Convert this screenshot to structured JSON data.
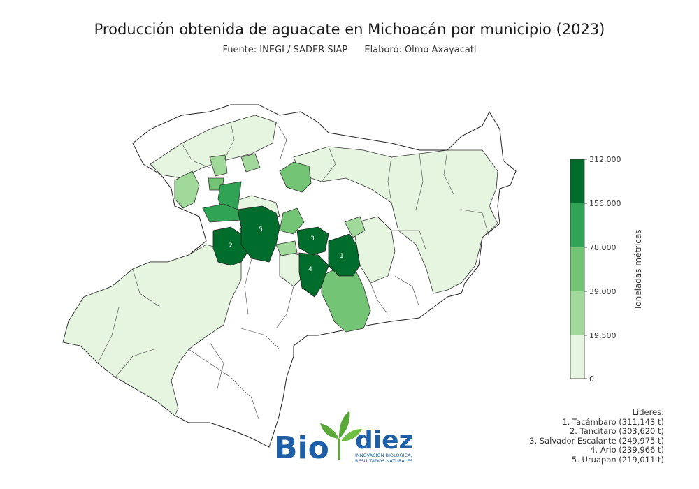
{
  "title": "Producción obtenida de aguacate en Michoacán por municipio (2023)",
  "source": "Fuente: INEGI / SADER-SIAP",
  "author": "Elaboró: Olmo Axayacatl",
  "legend": {
    "title": "Toneladas métricas",
    "ticks": [
      "312,000",
      "156,000",
      "78,000",
      "39,000",
      "19,500",
      "0"
    ],
    "colors": [
      "#006d2c",
      "#31a354",
      "#74c476",
      "#a1d99b",
      "#e5f5e0"
    ]
  },
  "markers": [
    "1",
    "2",
    "3",
    "4",
    "5"
  ],
  "leaders": {
    "heading": "Líderes:",
    "items": [
      "1. Tacámbaro (311,143 t)",
      "2. Tancítaro (303,620 t)",
      "3. Salvador Escalante (249,975 t)",
      "4. Ario (239,966 t)",
      "5. Uruapan (219,011 t)"
    ]
  },
  "logo": {
    "word_a": "Bio",
    "word_b": "diez",
    "tagline_1": "INNOVACIÓN BIOLÓGICA,",
    "tagline_2": "RESULTADOS NATURALES"
  }
}
